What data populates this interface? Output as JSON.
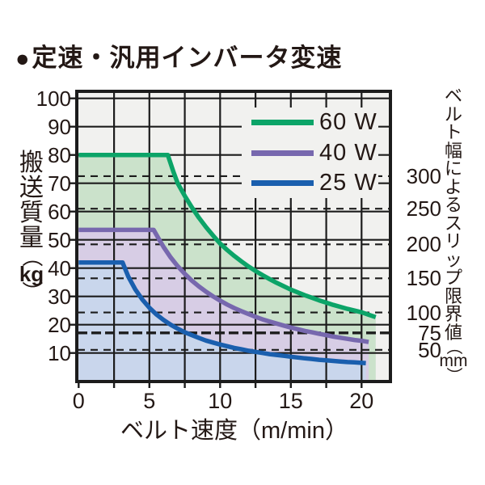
{
  "title": {
    "bullet": "●",
    "text": "定速・汎用インバータ変速"
  },
  "colors": {
    "plot_bg": "#F1F1EF",
    "grid": "#1C1C1C",
    "text": "#231815",
    "series_60w": "#0CA468",
    "series_40w": "#7768AE",
    "series_25w": "#1A5FAE",
    "fill_60w": "#CBE2CB",
    "fill_40w": "#D7CDE5",
    "fill_25w": "#C9D6EC"
  },
  "chart_data": {
    "type": "line",
    "title": "定速・汎用インバータ変速",
    "xlabel": "ベルト速度（m/min）",
    "ylabel": "搬送質量（kg）",
    "ylabel_chars": [
      "搬",
      "送",
      "質",
      "量",
      "（",
      "kg",
      "）"
    ],
    "y2label": "ベルト幅によるスリップ限界値（mm）",
    "y2label_chars": [
      "ベ",
      "ル",
      "ト",
      "幅",
      "に",
      "よ",
      "る",
      "ス",
      "リ",
      "ッ",
      "プ",
      "限",
      "界",
      "値",
      "（",
      "mm",
      "）"
    ],
    "xlim": [
      0,
      22.1
    ],
    "ylim": [
      0,
      102.5
    ],
    "x_ticks": [
      0,
      5,
      10,
      15,
      20
    ],
    "x_grid_step": 2.5,
    "y_ticks": [
      100,
      90,
      80,
      70,
      60,
      50,
      40,
      30,
      20,
      10
    ],
    "grid": true,
    "legend_position": "top-right",
    "series": [
      {
        "id": "60w",
        "name": "60 W",
        "color": "#0CA468",
        "fill": "#CBE2CB",
        "max_load_kg": 80,
        "flat_until_m_min": 6.3,
        "points": [
          [
            0,
            80
          ],
          [
            6.3,
            80
          ],
          [
            6.7,
            74
          ],
          [
            7,
            70
          ],
          [
            7.5,
            65.5
          ],
          [
            8,
            61.5
          ],
          [
            8.5,
            57.8
          ],
          [
            9,
            54.5
          ],
          [
            9.5,
            51.5
          ],
          [
            10,
            48.7
          ],
          [
            10.5,
            46.4
          ],
          [
            11,
            44.3
          ],
          [
            11.5,
            42.4
          ],
          [
            12,
            40.6
          ],
          [
            12.5,
            39
          ],
          [
            13,
            37.5
          ],
          [
            13.5,
            36.1
          ],
          [
            14,
            34.8
          ],
          [
            14.5,
            33.6
          ],
          [
            15,
            32.4
          ],
          [
            15.5,
            31.4
          ],
          [
            16,
            30.4
          ],
          [
            16.5,
            29.5
          ],
          [
            17,
            28.6
          ],
          [
            17.5,
            27.8
          ],
          [
            18,
            27
          ],
          [
            18.5,
            26.3
          ],
          [
            19,
            25.6
          ],
          [
            19.5,
            25
          ],
          [
            20,
            24.4
          ],
          [
            20.5,
            23.5
          ],
          [
            21,
            22.7
          ]
        ]
      },
      {
        "id": "40w",
        "name": "40 W",
        "color": "#7768AE",
        "fill": "#D7CDE5",
        "max_load_kg": 53.5,
        "flat_until_m_min": 5.3,
        "points": [
          [
            0,
            53.5
          ],
          [
            5.3,
            53.5
          ],
          [
            5.7,
            50
          ],
          [
            6,
            47.5
          ],
          [
            6.5,
            43.8
          ],
          [
            7,
            40.7
          ],
          [
            7.5,
            38
          ],
          [
            8,
            35.6
          ],
          [
            8.5,
            33.5
          ],
          [
            9,
            31.7
          ],
          [
            9.5,
            30
          ],
          [
            10,
            28.5
          ],
          [
            10.5,
            27.1
          ],
          [
            11,
            25.9
          ],
          [
            11.5,
            24.8
          ],
          [
            12,
            23.8
          ],
          [
            12.5,
            22.8
          ],
          [
            13,
            21.9
          ],
          [
            13.5,
            21.1
          ],
          [
            14,
            20.4
          ],
          [
            14.5,
            19.7
          ],
          [
            15,
            19
          ],
          [
            15.5,
            18.4
          ],
          [
            16,
            17.8
          ],
          [
            16.5,
            17.3
          ],
          [
            17,
            16.8
          ],
          [
            17.5,
            16.3
          ],
          [
            18,
            15.8
          ],
          [
            18.5,
            15.4
          ],
          [
            19,
            15
          ],
          [
            19.5,
            14.6
          ],
          [
            20,
            14.3
          ],
          [
            20.5,
            13.9
          ]
        ]
      },
      {
        "id": "25w",
        "name": "25 W",
        "color": "#1A5FAE",
        "fill": "#C9D6EC",
        "max_load_kg": 42,
        "flat_until_m_min": 3.1,
        "points": [
          [
            0,
            42
          ],
          [
            3.1,
            42
          ],
          [
            3.5,
            37.1
          ],
          [
            4,
            32.5
          ],
          [
            4.5,
            28.9
          ],
          [
            5,
            26
          ],
          [
            5.5,
            23.6
          ],
          [
            6,
            21.7
          ],
          [
            6.5,
            20
          ],
          [
            7,
            18.6
          ],
          [
            7.5,
            17.3
          ],
          [
            8,
            16.3
          ],
          [
            8.5,
            15.3
          ],
          [
            9,
            14.4
          ],
          [
            9.5,
            13.7
          ],
          [
            10,
            13
          ],
          [
            10.5,
            12.4
          ],
          [
            11,
            11.8
          ],
          [
            11.5,
            11.3
          ],
          [
            12,
            10.8
          ],
          [
            12.5,
            10.4
          ],
          [
            13,
            10
          ],
          [
            13.5,
            9.6
          ],
          [
            14,
            9.3
          ],
          [
            14.5,
            9
          ],
          [
            15,
            8.7
          ],
          [
            15.5,
            8.4
          ],
          [
            16,
            8.1
          ],
          [
            16.5,
            7.9
          ],
          [
            17,
            7.6
          ],
          [
            17.5,
            7.4
          ],
          [
            18,
            7.2
          ],
          [
            18.5,
            7
          ],
          [
            19,
            6.8
          ],
          [
            19.5,
            6.7
          ],
          [
            20,
            6.5
          ],
          [
            20.3,
            6.4
          ]
        ]
      }
    ],
    "slip_limit_lines": [
      {
        "label": "300",
        "kg": 72.5,
        "bold": false
      },
      {
        "label": "250",
        "kg": 61.0,
        "bold": false
      },
      {
        "label": "200",
        "kg": 48.4,
        "bold": false
      },
      {
        "label": "150",
        "kg": 36.4,
        "bold": false
      },
      {
        "label": "100",
        "kg": 24.3,
        "bold": false
      },
      {
        "label": "75",
        "kg": 17.1,
        "bold": true
      },
      {
        "label": "50",
        "kg": 11.1,
        "bold": false
      }
    ]
  }
}
